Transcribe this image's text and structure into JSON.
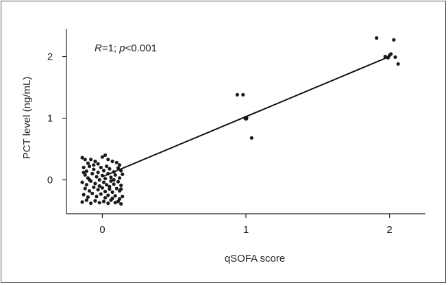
{
  "chart_data": {
    "type": "scatter",
    "xlabel": "qSOFA score",
    "ylabel": "PCT level (ng/mL)",
    "xlim": [
      -0.25,
      2.25
    ],
    "ylim": [
      -0.55,
      2.45
    ],
    "x_ticks": [
      {
        "value": 0,
        "label": "0"
      },
      {
        "value": 1,
        "label": "1"
      },
      {
        "value": 2,
        "label": "2"
      }
    ],
    "y_ticks": [
      {
        "value": 0,
        "label": "0"
      },
      {
        "value": 1,
        "label": "1"
      },
      {
        "value": 2,
        "label": "2"
      }
    ],
    "annotation": {
      "r_symbol": "R",
      "r_value": "=1; ",
      "p_symbol": "p",
      "p_value": "<0.001"
    },
    "fit_line": {
      "x": [
        0,
        2
      ],
      "y": [
        0.05,
        2.0
      ]
    },
    "mean_points": [
      {
        "x": 1,
        "y": 1.0
      }
    ],
    "points": [
      {
        "x": -0.14,
        "y": 0.36
      },
      {
        "x": -0.12,
        "y": 0.33
      },
      {
        "x": -0.1,
        "y": 0.27
      },
      {
        "x": -0.08,
        "y": 0.33
      },
      {
        "x": -0.05,
        "y": 0.3
      },
      {
        "x": 0.0,
        "y": 0.37
      },
      {
        "x": 0.02,
        "y": 0.4
      },
      {
        "x": 0.04,
        "y": 0.33
      },
      {
        "x": 0.07,
        "y": 0.3
      },
      {
        "x": 0.1,
        "y": 0.28
      },
      {
        "x": 0.12,
        "y": 0.24
      },
      {
        "x": -0.03,
        "y": 0.26
      },
      {
        "x": -0.13,
        "y": 0.2
      },
      {
        "x": -0.11,
        "y": 0.14
      },
      {
        "x": -0.09,
        "y": 0.22
      },
      {
        "x": -0.06,
        "y": 0.17
      },
      {
        "x": -0.03,
        "y": 0.12
      },
      {
        "x": -0.01,
        "y": 0.2
      },
      {
        "x": 0.01,
        "y": 0.15
      },
      {
        "x": 0.03,
        "y": 0.22
      },
      {
        "x": 0.05,
        "y": 0.18
      },
      {
        "x": 0.08,
        "y": 0.13
      },
      {
        "x": 0.11,
        "y": 0.19
      },
      {
        "x": 0.13,
        "y": 0.15
      },
      {
        "x": -0.12,
        "y": 0.08
      },
      {
        "x": -0.1,
        "y": 0.03
      },
      {
        "x": -0.07,
        "y": 0.1
      },
      {
        "x": -0.04,
        "y": 0.05
      },
      {
        "x": -0.02,
        "y": 0.0
      },
      {
        "x": 0.0,
        "y": 0.07
      },
      {
        "x": 0.02,
        "y": 0.02
      },
      {
        "x": 0.04,
        "y": 0.1
      },
      {
        "x": 0.06,
        "y": 0.04
      },
      {
        "x": 0.09,
        "y": 0.08
      },
      {
        "x": 0.12,
        "y": 0.03
      },
      {
        "x": 0.14,
        "y": 0.09
      },
      {
        "x": -0.14,
        "y": -0.04
      },
      {
        "x": -0.11,
        "y": -0.08
      },
      {
        "x": -0.08,
        "y": -0.02
      },
      {
        "x": -0.05,
        "y": -0.06
      },
      {
        "x": -0.02,
        "y": -0.1
      },
      {
        "x": 0.01,
        "y": -0.04
      },
      {
        "x": 0.03,
        "y": -0.08
      },
      {
        "x": 0.06,
        "y": -0.02
      },
      {
        "x": 0.08,
        "y": -0.07
      },
      {
        "x": 0.11,
        "y": -0.03
      },
      {
        "x": 0.13,
        "y": -0.09
      },
      {
        "x": -0.12,
        "y": -0.14
      },
      {
        "x": -0.09,
        "y": -0.18
      },
      {
        "x": -0.06,
        "y": -0.12
      },
      {
        "x": -0.03,
        "y": -0.16
      },
      {
        "x": 0.0,
        "y": -0.13
      },
      {
        "x": 0.02,
        "y": -0.19
      },
      {
        "x": 0.05,
        "y": -0.15
      },
      {
        "x": 0.07,
        "y": -0.2
      },
      {
        "x": 0.1,
        "y": -0.14
      },
      {
        "x": 0.12,
        "y": -0.18
      },
      {
        "x": -0.13,
        "y": -0.24
      },
      {
        "x": -0.1,
        "y": -0.28
      },
      {
        "x": -0.07,
        "y": -0.22
      },
      {
        "x": -0.04,
        "y": -0.27
      },
      {
        "x": -0.01,
        "y": -0.23
      },
      {
        "x": 0.02,
        "y": -0.29
      },
      {
        "x": 0.04,
        "y": -0.25
      },
      {
        "x": 0.07,
        "y": -0.3
      },
      {
        "x": 0.09,
        "y": -0.26
      },
      {
        "x": 0.12,
        "y": -0.31
      },
      {
        "x": 0.14,
        "y": -0.27
      },
      {
        "x": -0.14,
        "y": -0.36
      },
      {
        "x": -0.11,
        "y": -0.33
      },
      {
        "x": -0.08,
        "y": -0.38
      },
      {
        "x": -0.05,
        "y": -0.34
      },
      {
        "x": -0.02,
        "y": -0.37
      },
      {
        "x": 0.01,
        "y": -0.35
      },
      {
        "x": 0.04,
        "y": -0.38
      },
      {
        "x": 0.06,
        "y": -0.33
      },
      {
        "x": 0.09,
        "y": -0.37
      },
      {
        "x": 0.11,
        "y": -0.35
      },
      {
        "x": 0.13,
        "y": -0.39
      },
      {
        "x": -0.09,
        "y": 0.0
      },
      {
        "x": 0.08,
        "y": 0.0
      },
      {
        "x": -0.13,
        "y": 0.12
      },
      {
        "x": 0.13,
        "y": -0.15
      },
      {
        "x": -0.06,
        "y": 0.24
      },
      {
        "x": 0.05,
        "y": -0.11
      },
      {
        "x": 0.94,
        "y": 1.38
      },
      {
        "x": 0.98,
        "y": 1.38
      },
      {
        "x": 1.04,
        "y": 0.68
      },
      {
        "x": 1.91,
        "y": 2.3
      },
      {
        "x": 2.03,
        "y": 2.27
      },
      {
        "x": 2.06,
        "y": 1.88
      },
      {
        "x": 1.97,
        "y": 2.0
      },
      {
        "x": 2.01,
        "y": 2.04
      },
      {
        "x": 2.04,
        "y": 1.99
      },
      {
        "x": 1.99,
        "y": 1.98
      },
      {
        "x": 2.0,
        "y": 2.02
      }
    ]
  }
}
